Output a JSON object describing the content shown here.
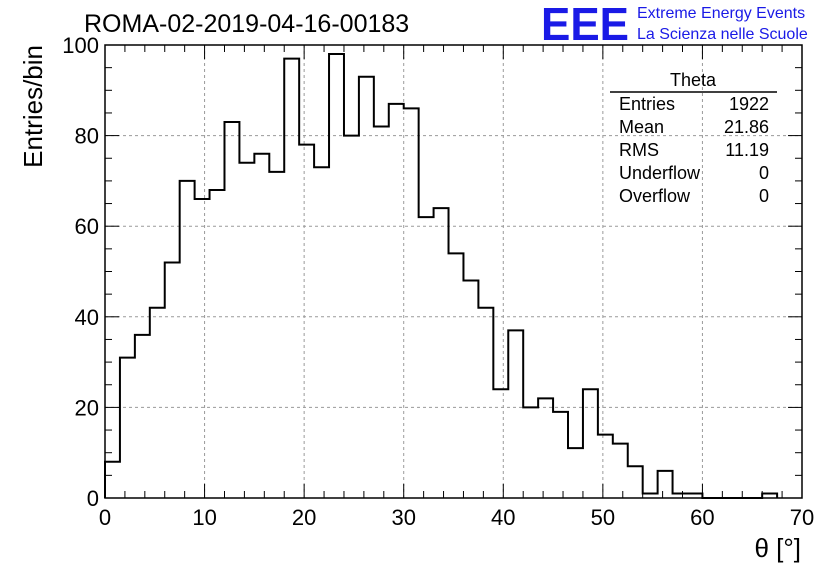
{
  "header": {
    "run_title": "ROMA-02-2019-04-16-00183",
    "logo_mark": "EEE",
    "logo_line1": "Extreme Energy Events",
    "logo_line2": "La Scienza nelle Scuole"
  },
  "stats": {
    "title": "Theta",
    "rows": [
      {
        "label": "Entries",
        "value": "1922"
      },
      {
        "label": "Mean",
        "value": "21.86"
      },
      {
        "label": "RMS",
        "value": "11.19"
      },
      {
        "label": "Underflow",
        "value": "0"
      },
      {
        "label": "Overflow",
        "value": "0"
      }
    ]
  },
  "chart_data": {
    "type": "bar",
    "style": "step-histogram",
    "xlabel": "θ [°]",
    "ylabel": "Entries/bin",
    "xlim": [
      0,
      70
    ],
    "ylim": [
      0,
      100
    ],
    "bin_width": 1.5,
    "bin_start": 0,
    "values": [
      8,
      31,
      36,
      42,
      52,
      70,
      66,
      68,
      83,
      74,
      76,
      72,
      97,
      78,
      73,
      98,
      80,
      93,
      82,
      87,
      86,
      62,
      64,
      54,
      48,
      42,
      24,
      37,
      20,
      22,
      19,
      11,
      24,
      14,
      12,
      7,
      1,
      6,
      1,
      1,
      0,
      0,
      0,
      0,
      1
    ],
    "xticks": [
      0,
      10,
      20,
      30,
      40,
      50,
      60,
      70
    ],
    "yticks": [
      0,
      20,
      40,
      60,
      80,
      100
    ],
    "grid": true,
    "colors": {
      "line": "#000000",
      "grid": "#9a9a9a",
      "logo": "#1a1ae6"
    }
  }
}
